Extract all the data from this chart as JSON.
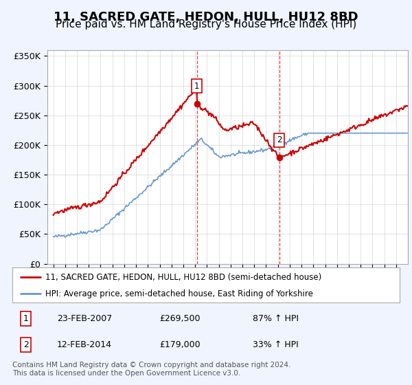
{
  "title": "11, SACRED GATE, HEDON, HULL, HU12 8BD",
  "subtitle": "Price paid vs. HM Land Registry's House Price Index (HPI)",
  "title_fontsize": 13,
  "subtitle_fontsize": 11,
  "ylim": [
    0,
    360000
  ],
  "yticks": [
    0,
    50000,
    100000,
    150000,
    200000,
    250000,
    300000,
    350000
  ],
  "ytick_labels": [
    "£0",
    "£50K",
    "£100K",
    "£150K",
    "£200K",
    "£250K",
    "£300K",
    "£350K"
  ],
  "hpi_color": "#6699cc",
  "price_color": "#cc0000",
  "sale1_date": 2007.14,
  "sale1_price": 269500,
  "sale2_date": 2014.12,
  "sale2_price": 179000,
  "legend_line1": "11, SACRED GATE, HEDON, HULL, HU12 8BD (semi-detached house)",
  "legend_line2": "HPI: Average price, semi-detached house, East Riding of Yorkshire",
  "table_row1": [
    "1",
    "23-FEB-2007",
    "£269,500",
    "87% ↑ HPI"
  ],
  "table_row2": [
    "2",
    "12-FEB-2014",
    "£179,000",
    "33% ↑ HPI"
  ],
  "footnote": "Contains HM Land Registry data © Crown copyright and database right 2024.\nThis data is licensed under the Open Government Licence v3.0.",
  "background_color": "#f0f4ff",
  "grid_color": "#cccccc"
}
